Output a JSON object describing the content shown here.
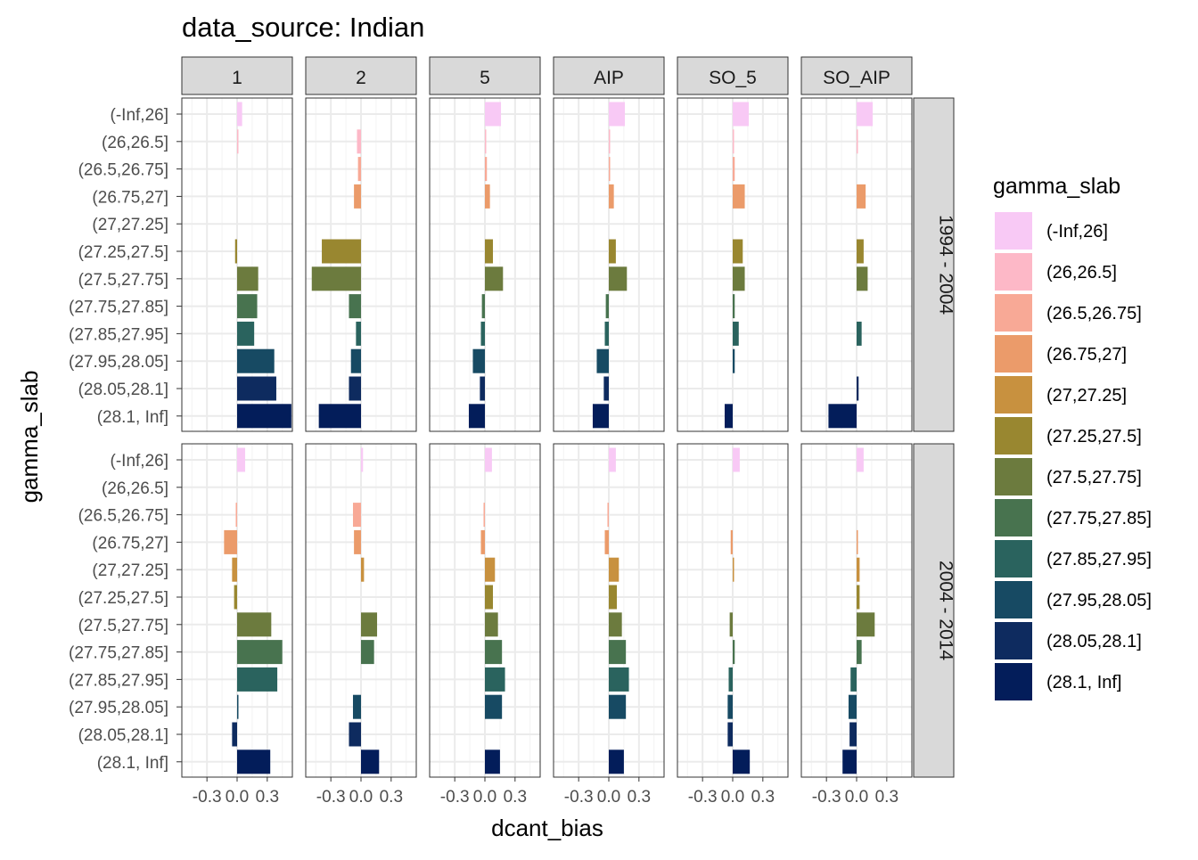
{
  "chart_data": {
    "type": "bar",
    "title": "data_source: Indian",
    "xlabel": "dcant_bias",
    "ylabel": "gamma_slab",
    "xlim": [
      -0.55,
      0.55
    ],
    "x_ticks": [
      -0.3,
      0.0,
      0.3
    ],
    "x_tick_labels": [
      "-0.3",
      "0.0",
      "0.3"
    ],
    "grid": true,
    "legend_position": "right",
    "legend_title": "gamma_slab",
    "column_facets": [
      "1",
      "2",
      "5",
      "AIP",
      "SO_5",
      "SO_AIP"
    ],
    "row_facets": [
      "1994 - 2004",
      "2004 - 2014"
    ],
    "categories": [
      "(-Inf,26]",
      "(26,26.5]",
      "(26.5,26.75]",
      "(26.75,27]",
      "(27,27.25]",
      "(27.25,27.5]",
      "(27.5,27.75]",
      "(27.75,27.85]",
      "(27.85,27.95]",
      "(27.95,28.05]",
      "(28.05,28.1]",
      "(28.1, Inf]"
    ],
    "colors": [
      "#F8C9F5",
      "#FDB8C7",
      "#F8A996",
      "#EB9B6A",
      "#C8913F",
      "#998730",
      "#6C7B3E",
      "#48734F",
      "#2A635E",
      "#174A63",
      "#0E2B5F",
      "#031D5A"
    ],
    "panels": [
      {
        "facet": "1",
        "period": "1994 - 2004",
        "values": [
          0.05,
          0.01,
          0.0,
          0.0,
          0.0,
          -0.02,
          0.21,
          0.2,
          0.17,
          0.37,
          0.39,
          0.54
        ]
      },
      {
        "facet": "2",
        "period": "1994 - 2004",
        "values": [
          0.0,
          -0.04,
          -0.03,
          -0.07,
          0.0,
          -0.39,
          -0.49,
          -0.12,
          -0.05,
          -0.1,
          -0.12,
          -0.42
        ]
      },
      {
        "facet": "5",
        "period": "1994 - 2004",
        "values": [
          0.16,
          0.01,
          0.02,
          0.05,
          0.0,
          0.08,
          0.18,
          -0.03,
          -0.04,
          -0.12,
          -0.05,
          -0.16
        ]
      },
      {
        "facet": "AIP",
        "period": "1994 - 2004",
        "values": [
          0.16,
          0.01,
          0.01,
          0.05,
          0.0,
          0.07,
          0.18,
          -0.03,
          -0.04,
          -0.12,
          -0.05,
          -0.16
        ]
      },
      {
        "facet": "SO_5",
        "period": "1994 - 2004",
        "values": [
          0.16,
          0.01,
          0.02,
          0.12,
          0.0,
          0.1,
          0.12,
          0.02,
          0.06,
          0.02,
          0.0,
          -0.08
        ]
      },
      {
        "facet": "SO_AIP",
        "period": "1994 - 2004",
        "values": [
          0.16,
          0.01,
          0.0,
          0.09,
          0.0,
          0.07,
          0.11,
          0.0,
          0.05,
          0.0,
          0.02,
          -0.28
        ]
      },
      {
        "facet": "1",
        "period": "2004 - 2014",
        "values": [
          0.08,
          0.0,
          -0.01,
          -0.13,
          -0.05,
          -0.03,
          0.34,
          0.45,
          0.4,
          0.01,
          -0.05,
          0.33
        ]
      },
      {
        "facet": "2",
        "period": "2004 - 2014",
        "values": [
          0.02,
          0.0,
          -0.08,
          -0.07,
          0.03,
          0.0,
          0.16,
          0.13,
          0.0,
          -0.08,
          -0.12,
          0.18
        ]
      },
      {
        "facet": "5",
        "period": "2004 - 2014",
        "values": [
          0.07,
          0.0,
          -0.01,
          -0.04,
          0.1,
          0.08,
          0.13,
          0.17,
          0.2,
          0.17,
          0.0,
          0.15
        ]
      },
      {
        "facet": "AIP",
        "period": "2004 - 2014",
        "values": [
          0.07,
          0.0,
          -0.01,
          -0.04,
          0.1,
          0.08,
          0.13,
          0.17,
          0.2,
          0.17,
          0.0,
          0.15
        ]
      },
      {
        "facet": "SO_5",
        "period": "2004 - 2014",
        "values": [
          0.07,
          0.0,
          0.0,
          -0.02,
          0.01,
          0.0,
          -0.03,
          0.02,
          -0.04,
          -0.05,
          -0.05,
          0.17
        ]
      },
      {
        "facet": "SO_AIP",
        "period": "2004 - 2014",
        "values": [
          0.07,
          0.0,
          0.0,
          0.01,
          0.03,
          0.03,
          0.18,
          0.05,
          -0.06,
          -0.08,
          -0.07,
          -0.14
        ]
      }
    ]
  }
}
